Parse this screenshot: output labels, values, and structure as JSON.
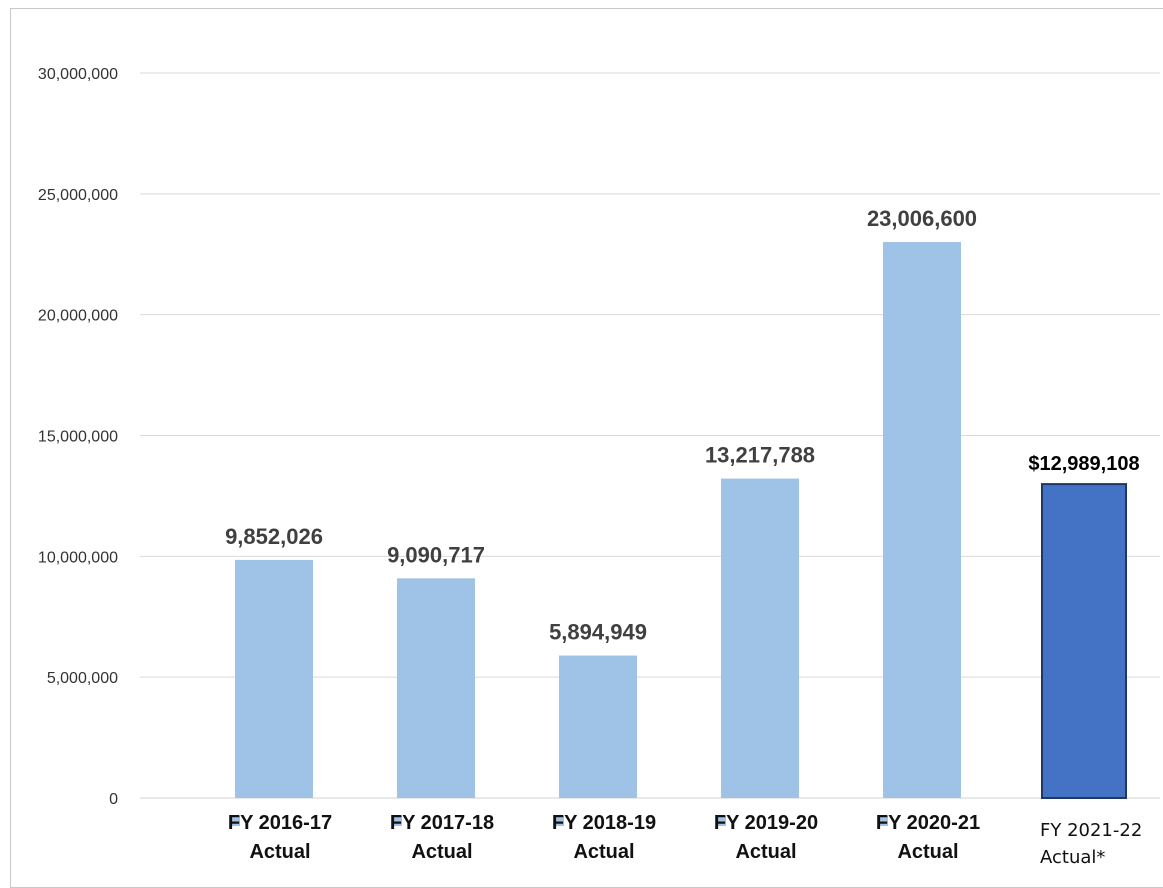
{
  "chart_data": {
    "type": "bar",
    "title": "",
    "xlabel": "",
    "ylabel": "",
    "ylim": [
      0,
      30000000
    ],
    "y_ticks": [
      "0",
      "5,000,000",
      "10,000,000",
      "15,000,000",
      "20,000,000",
      "25,000,000",
      "30,000,000"
    ],
    "grid": true,
    "categories": [
      [
        "FY 2016-17",
        "Actual"
      ],
      [
        "FY 2017-18",
        "Actual"
      ],
      [
        "FY 2018-19",
        "Actual"
      ],
      [
        "FY 2019-20",
        "Actual"
      ],
      [
        "FY 2020-21",
        "Actual"
      ],
      [
        "FY 2021-22",
        "Actual*"
      ]
    ],
    "values": [
      9852026,
      9090717,
      5894949,
      13217788,
      23006600,
      12989108
    ],
    "data_labels": [
      "9,852,026",
      "9,090,717",
      "5,894,949",
      "13,217,788",
      "23,006,600",
      "$12,989,108"
    ],
    "highlight_index": 5,
    "colors": {
      "bar": "#9fc3e7",
      "highlight_bar": "#4472c4",
      "highlight_border": "#1f3864",
      "grid": "#d9d9d9",
      "legend_marker": "#9fc3e7"
    }
  }
}
